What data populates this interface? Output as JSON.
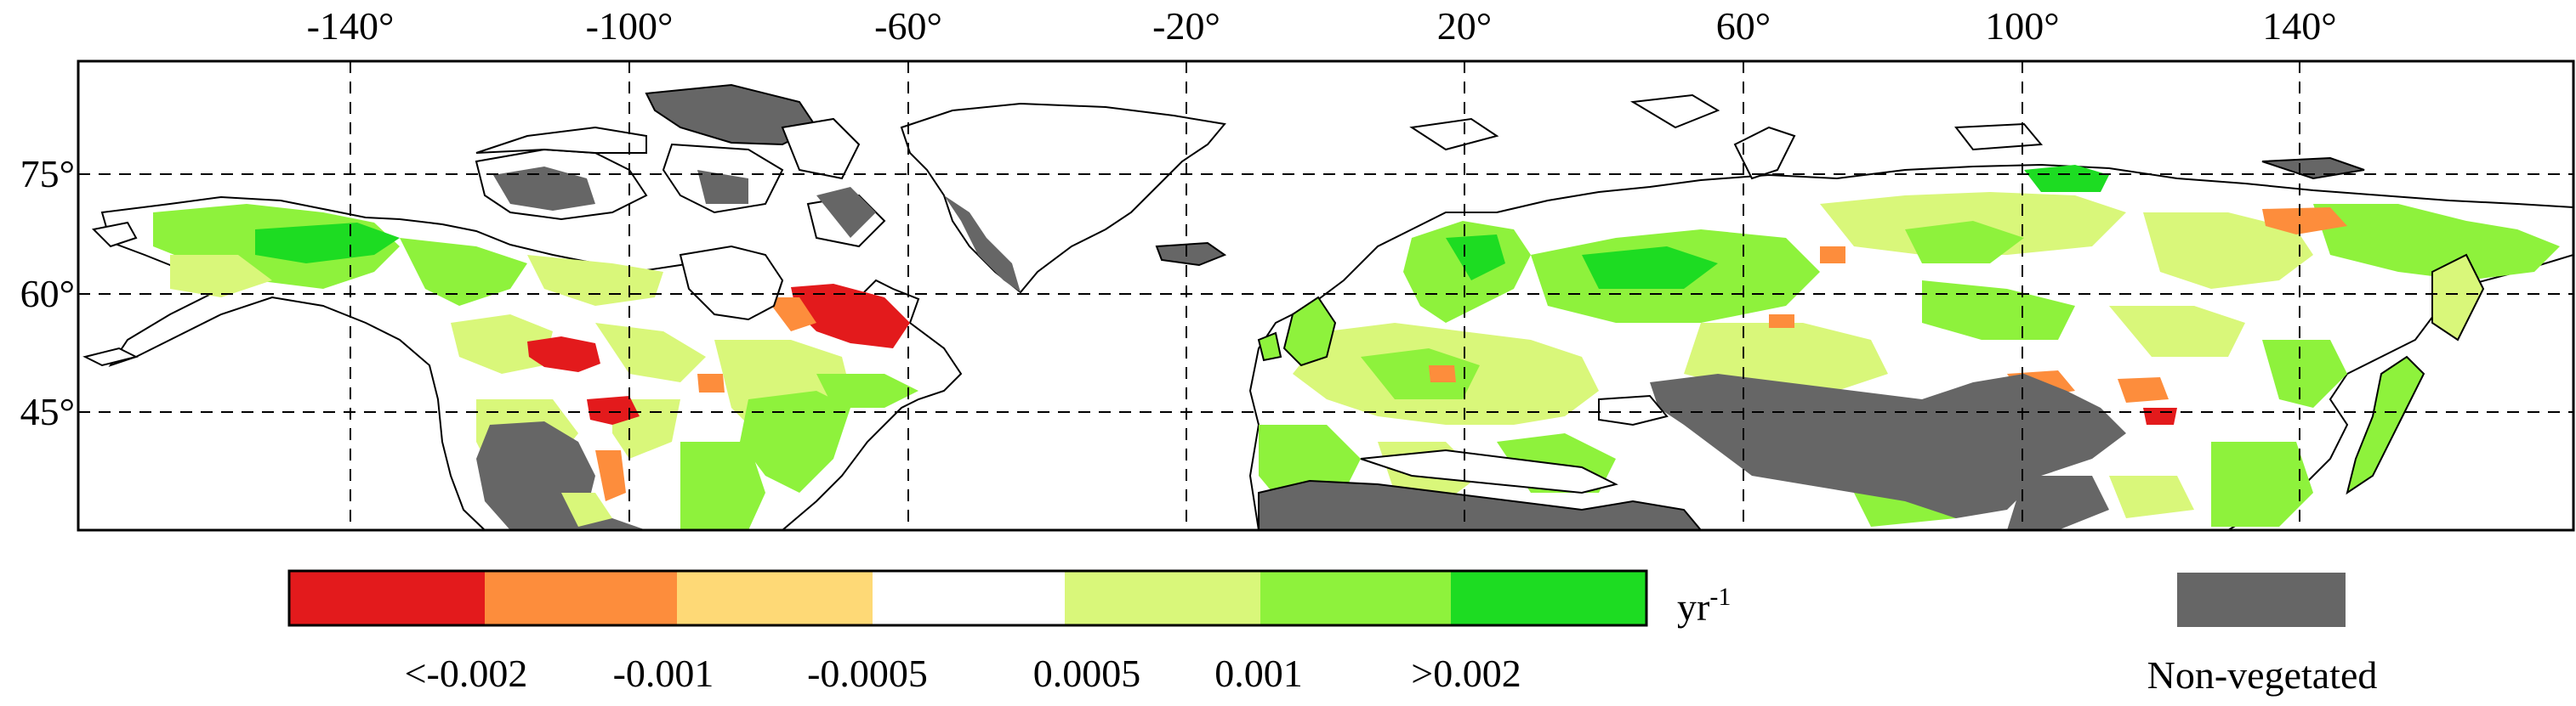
{
  "map": {
    "lon_ticks": [
      "-140°",
      "-100°",
      "-60°",
      "-20°",
      "20°",
      "60°",
      "100°",
      "140°"
    ],
    "lat_ticks": [
      "75°",
      "60°",
      "45°"
    ],
    "lon_values": [
      -140,
      -100,
      -60,
      -20,
      20,
      60,
      100,
      140
    ],
    "lat_values": [
      75,
      60,
      45
    ]
  },
  "legend": {
    "colors": [
      "#e31a1c",
      "#fd8d3c",
      "#fed976",
      "#ffffff",
      "#d9f77a",
      "#8ef23c",
      "#1ddc22"
    ],
    "boundary_labels": [
      "<-0.002",
      "-0.001",
      "-0.0005",
      "0.0005",
      "0.001",
      ">0.002"
    ],
    "unit_base": "yr",
    "unit_exp": "-1",
    "nonveg_color": "#666666",
    "nonveg_label": "Non-vegetated"
  },
  "colors": {
    "land_veg_white": "#ffffff",
    "green_light": "#d9f77a",
    "green_mid": "#8ef23c",
    "green_dark": "#1ddc22",
    "orange": "#fd8d3c",
    "red": "#e31a1c",
    "nonveg": "#666666"
  }
}
